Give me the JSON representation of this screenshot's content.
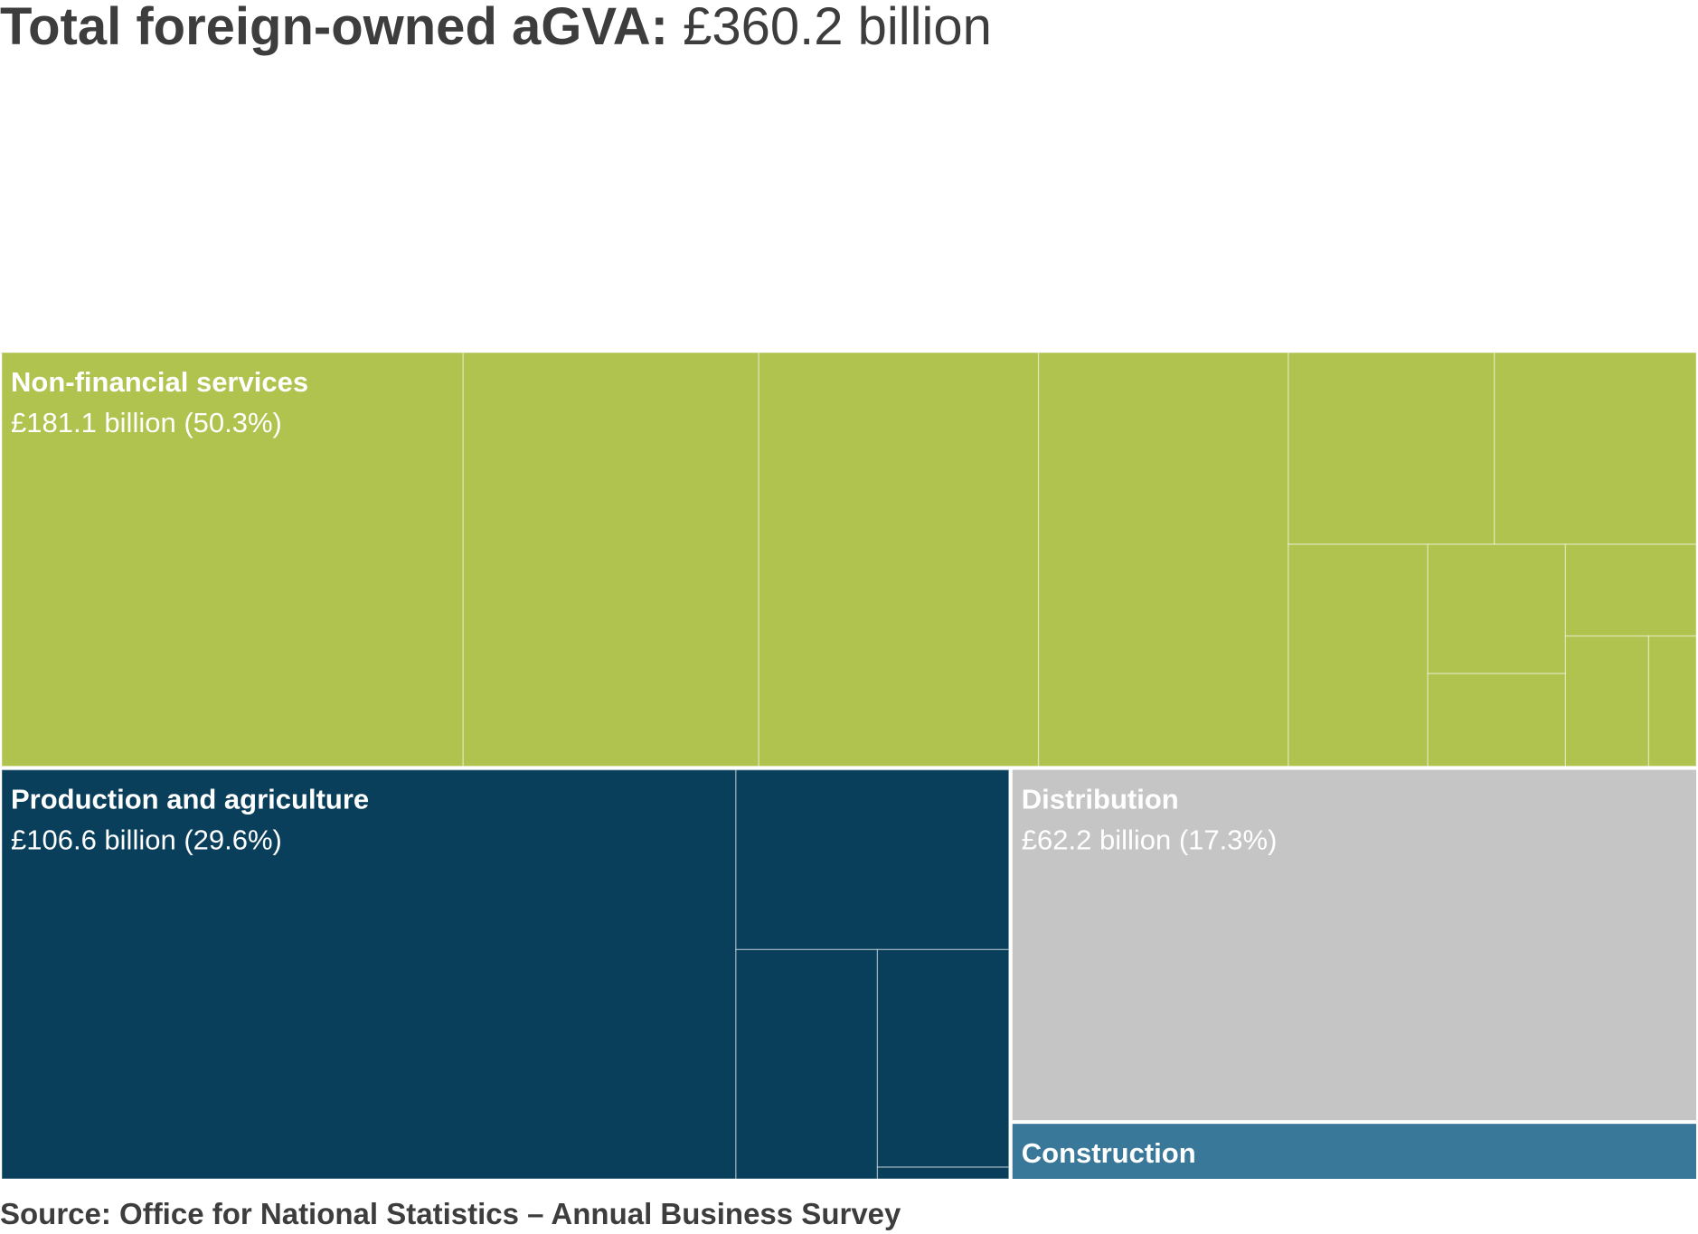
{
  "colors": {
    "non_financial": "#afc34e",
    "production": "#0a3f5b",
    "distribution": "#c5c5c5",
    "construction": "#3a7899",
    "divider": "#ffffff"
  },
  "title": {
    "bold": "Total foreign-owned aGVA:",
    "value": "£360.2 billion"
  },
  "source": "Source: Office for National Statistics – Annual Business Survey",
  "chart_data": {
    "type": "treemap",
    "title": "Total foreign-owned aGVA: £360.2 billion",
    "total": 360.2,
    "unit": "£ billion",
    "groups": [
      {
        "key": "non_financial",
        "name": "Non-financial services",
        "value": 181.1,
        "share_pct": 50.3,
        "value_label": "£181.1 billion (50.3%)",
        "children": [
          {
            "value": 49.3
          },
          {
            "value": 31.6
          },
          {
            "value": 29.9
          },
          {
            "value": 26.7
          },
          {
            "value": 10.2
          },
          {
            "value": 10.0
          },
          {
            "value": 8.0
          },
          {
            "value": 4.6
          },
          {
            "value": 3.3
          },
          {
            "value": 3.1
          },
          {
            "value": 2.8
          },
          {
            "value": 1.6
          }
        ]
      },
      {
        "key": "production",
        "name": "Production and agriculture",
        "value": 106.6,
        "share_pct": 29.6,
        "value_label": "£106.6 billion (29.6%)",
        "children": [
          {
            "value": 77.7
          },
          {
            "value": 12.7
          },
          {
            "value": 8.4
          },
          {
            "value": 7.4
          },
          {
            "value": 0.4
          }
        ]
      },
      {
        "key": "distribution",
        "name": "Distribution",
        "value": 62.2,
        "share_pct": 17.3,
        "value_label": "£62.2 billion (17.3%)",
        "children": [
          {
            "value": 62.2
          }
        ]
      },
      {
        "key": "construction",
        "name": "Construction",
        "value": 10.3,
        "share_pct": 2.9,
        "value_label": "",
        "children": [
          {
            "value": 10.3
          }
        ]
      }
    ]
  }
}
